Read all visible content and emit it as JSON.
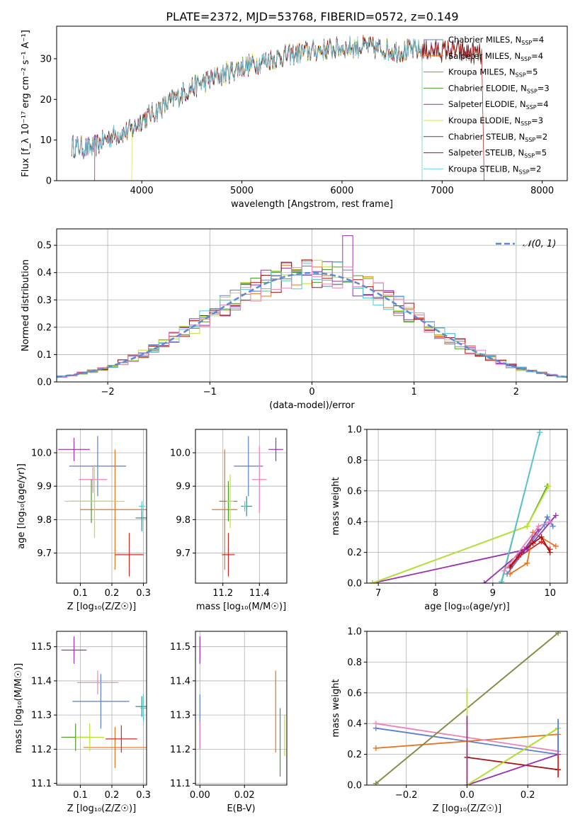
{
  "chart_data": [
    {
      "id": "spectrum",
      "type": "line",
      "title": "PLATE=2372, MJD=53768, FIBERID=0572, z=0.149",
      "xlabel": "wavelength [Angstrom, rest frame]",
      "ylabel": "Flux [f_λ 10⁻¹⁷ erg cm⁻² s⁻¹ A⁻¹]",
      "xlim": [
        3150,
        8250
      ],
      "ylim": [
        0,
        38
      ],
      "xticks": [
        "4000",
        "5000",
        "6000",
        "7000",
        "8000"
      ],
      "yticks": [
        "0",
        "10",
        "20",
        "30"
      ],
      "grid": false,
      "legend_position": "top-right",
      "legend": [
        {
          "name": "Chabrier MILES",
          "nssp": "4"
        },
        {
          "name": "Salpeter MILES",
          "nssp": "4"
        },
        {
          "name": "Kroupa MILES",
          "nssp": "5"
        },
        {
          "name": "Chabrier ELODIE",
          "nssp": "3"
        },
        {
          "name": "Salpeter ELODIE",
          "nssp": "4"
        },
        {
          "name": "Kroupa ELODIE",
          "nssp": "3"
        },
        {
          "name": "Chabrier STELIB",
          "nssp": "2"
        },
        {
          "name": "Salpeter STELIB",
          "nssp": "5"
        },
        {
          "name": "Kroupa STELIB",
          "nssp": "2"
        }
      ],
      "continuum_x": [
        3300,
        3500,
        3700,
        3900,
        4000,
        4200,
        4500,
        4800,
        5000,
        5300,
        5600,
        5900,
        6200,
        6500,
        6800,
        7100,
        7400
      ],
      "continuum_y": [
        8.5,
        8,
        11,
        12.5,
        15,
        18,
        23,
        26,
        28,
        30,
        31.5,
        32.5,
        33,
        32,
        32,
        32,
        31
      ],
      "model_ranges": [
        [
          3300,
          7400
        ],
        [
          3300,
          7400
        ],
        [
          3300,
          7400
        ],
        [
          3300,
          7400
        ],
        [
          3300,
          7400
        ],
        [
          3900,
          6800
        ],
        [
          3300,
          7400
        ],
        [
          3530,
          7420
        ],
        [
          3300,
          6800
        ]
      ]
    },
    {
      "id": "residuals",
      "type": "area",
      "xlabel": "(data-model)/error",
      "ylabel": "Normed distribution",
      "xlim": [
        -2.5,
        2.5
      ],
      "ylim": [
        0,
        0.56
      ],
      "xticks": [
        "−2",
        "−1",
        "0",
        "1",
        "2"
      ],
      "yticks": [
        "0.0",
        "0.1",
        "0.2",
        "0.3",
        "0.4",
        "0.5"
      ],
      "grid": true,
      "legend_position": "top-right",
      "legend": [
        {
          "name": "𝒩(0, 1)"
        }
      ],
      "bin_width": 0.1,
      "peak_values": [
        0.535,
        0.51,
        0.49,
        0.475,
        0.46
      ]
    },
    {
      "id": "age-vs-Z",
      "type": "scatter",
      "xlabel": "Z [log₁₀(Z/Z☉)]",
      "ylabel": "age  [log₁₀(age/yr)]",
      "xlim": [
        0.025,
        0.31
      ],
      "ylim": [
        9.61,
        10.07
      ],
      "xticks": [
        "0.1",
        "0.2",
        "0.3"
      ],
      "yticks": [
        "9.7",
        "9.8",
        "9.9",
        "10.0"
      ],
      "grid": true,
      "points": [
        {
          "x": 0.08,
          "y": 10.01,
          "xerr": 0.05,
          "yerr": 0.035
        },
        {
          "x": 0.155,
          "y": 9.96,
          "xerr": 0.09,
          "yerr": 0.09
        },
        {
          "x": 0.14,
          "y": 9.92,
          "xerr": 0.045,
          "yerr": 0.04
        },
        {
          "x": 0.21,
          "y": 9.83,
          "xerr": 0.11,
          "yerr": 0.18
        },
        {
          "x": 0.135,
          "y": 9.855,
          "xerr": 0.065,
          "yerr": 0.065
        },
        {
          "x": 0.145,
          "y": 9.855,
          "xerr": 0.095,
          "yerr": 0.11
        },
        {
          "x": 0.295,
          "y": 9.805,
          "xerr": 0.02,
          "yerr": 0.04
        },
        {
          "x": 0.255,
          "y": 9.695,
          "xerr": 0.045,
          "yerr": 0.065
        },
        {
          "x": 0.295,
          "y": 9.84,
          "xerr": 0.01,
          "yerr": 0.015
        }
      ]
    },
    {
      "id": "age-vs-mass",
      "type": "scatter",
      "xlabel": "mass [log₁₀(M/M☉)]",
      "ylabel": "",
      "xlim": [
        11.05,
        11.55
      ],
      "ylim": [
        9.61,
        10.07
      ],
      "xticks": [
        "11.2",
        "11.4"
      ],
      "yticks": [
        "9.7",
        "9.8",
        "9.9",
        "10.0"
      ],
      "grid": true,
      "points": [
        {
          "x": 11.49,
          "y": 10.01,
          "xerr": 0.04,
          "yerr": 0.035
        },
        {
          "x": 11.34,
          "y": 9.96,
          "xerr": 0.08,
          "yerr": 0.09
        },
        {
          "x": 11.4,
          "y": 9.92,
          "xerr": 0.04,
          "yerr": 0.1
        },
        {
          "x": 11.21,
          "y": 9.83,
          "xerr": 0.07,
          "yerr": 0.18
        },
        {
          "x": 11.23,
          "y": 9.855,
          "xerr": 0.05,
          "yerr": 0.06
        },
        {
          "x": 11.24,
          "y": 9.855,
          "xerr": 0.02,
          "yerr": 0.08
        },
        {
          "x": 11.33,
          "y": 9.84,
          "xerr": 0.03,
          "yerr": 0.03
        },
        {
          "x": 11.23,
          "y": 9.695,
          "xerr": 0.035,
          "yerr": 0.065
        },
        {
          "x": 11.32,
          "y": 9.84,
          "xerr": 0.01,
          "yerr": 0.015
        }
      ]
    },
    {
      "id": "weight-vs-age",
      "type": "line",
      "xlabel": "age  [log₁₀(age/yr)]",
      "ylabel": "mass weight",
      "xlim": [
        6.8,
        10.3
      ],
      "ylim": [
        0,
        1
      ],
      "xticks": [
        "7",
        "8",
        "9",
        "10"
      ],
      "yticks": [
        "0.0",
        "0.2",
        "0.4",
        "0.6",
        "0.8",
        "1.0"
      ],
      "grid": true,
      "series": [
        {
          "color": "#5a7fd6",
          "x": [
            9.25,
            9.9,
            9.95,
            10.05
          ],
          "y": [
            0.06,
            0.38,
            0.43,
            0.37
          ]
        },
        {
          "color": "#d62728",
          "x": [
            9.3,
            9.45,
            9.85,
            10.0
          ],
          "y": [
            0.1,
            0.17,
            0.27,
            0.22
          ]
        },
        {
          "color": "#e8741a",
          "x": [
            9.3,
            9.6,
            9.7,
            10.1
          ],
          "y": [
            0.06,
            0.13,
            0.33,
            0.24
          ]
        },
        {
          "color": "#4c9a2a",
          "x": [
            6.9,
            9.6,
            9.95
          ],
          "y": [
            0.0,
            0.37,
            0.63
          ]
        },
        {
          "color": "#9a2fb0",
          "x": [
            6.9,
            9.6,
            10.1
          ],
          "y": [
            0.0,
            0.22,
            0.44
          ]
        },
        {
          "color": "#b8e32e",
          "x": [
            6.9,
            9.6,
            9.97
          ],
          "y": [
            0.0,
            0.37,
            0.63
          ]
        },
        {
          "color": "#8a8a3a",
          "x": [
            9.15,
            9.82
          ],
          "y": [
            0.0,
            0.98
          ]
        },
        {
          "color": "#a80f0f",
          "x": [
            9.3,
            9.5,
            9.7,
            9.85,
            10.0
          ],
          "y": [
            0.11,
            0.2,
            0.26,
            0.3,
            0.2
          ]
        },
        {
          "color": "#55c8d6",
          "x": [
            9.15,
            9.82
          ],
          "y": [
            0.01,
            0.98
          ]
        },
        {
          "color": "#9a2fb0",
          "x": [
            8.85,
            9.55,
            9.8
          ],
          "y": [
            0.0,
            0.22,
            0.35
          ]
        },
        {
          "color": "#ee82b8",
          "x": [
            9.2,
            9.8,
            10.0
          ],
          "y": [
            0.08,
            0.37,
            0.4
          ]
        }
      ]
    },
    {
      "id": "mass-vs-Z",
      "type": "scatter",
      "xlabel": "Z [log₁₀(Z/Z☉)]",
      "ylabel": "mass [log₁₀(M/M☉)]",
      "xlim": [
        0.025,
        0.31
      ],
      "ylim": [
        11.095,
        11.545
      ],
      "xticks": [
        "0.1",
        "0.2",
        "0.3"
      ],
      "yticks": [
        "11.1",
        "11.2",
        "11.3",
        "11.4",
        "11.5"
      ],
      "grid": true,
      "points": [
        {
          "x": 0.08,
          "y": 11.49,
          "xerr": 0.04,
          "yerr": 0.04
        },
        {
          "x": 0.165,
          "y": 11.34,
          "xerr": 0.09,
          "yerr": 0.08
        },
        {
          "x": 0.155,
          "y": 11.395,
          "xerr": 0.065,
          "yerr": 0.035
        },
        {
          "x": 0.21,
          "y": 11.205,
          "xerr": 0.1,
          "yerr": 0.06
        },
        {
          "x": 0.085,
          "y": 11.235,
          "xerr": 0.045,
          "yerr": 0.04
        },
        {
          "x": 0.13,
          "y": 11.235,
          "xerr": 0.045,
          "yerr": 0.04
        },
        {
          "x": 0.295,
          "y": 11.325,
          "xerr": 0.02,
          "yerr": 0.03
        },
        {
          "x": 0.23,
          "y": 11.23,
          "xerr": 0.05,
          "yerr": 0.04
        },
        {
          "x": 0.3,
          "y": 11.32,
          "xerr": 0.01,
          "yerr": 0.04
        }
      ]
    },
    {
      "id": "mass-vs-EBV",
      "type": "scatter",
      "xlabel": "E(B-V)",
      "ylabel": "",
      "xlim": [
        -0.002,
        0.039
      ],
      "ylim": [
        11.095,
        11.545
      ],
      "xticks": [
        "0.00",
        "0.02"
      ],
      "yticks": [
        "11.1",
        "11.2",
        "11.3",
        "11.4",
        "11.5"
      ],
      "grid": true,
      "points": [
        {
          "x": 0.0,
          "y": 11.49,
          "xerr": 0,
          "yerr": 0.04
        },
        {
          "x": 0.0,
          "y": 11.28,
          "xerr": 0,
          "yerr": 0.08
        },
        {
          "x": 0.0,
          "y": 11.24,
          "xerr": 0,
          "yerr": 0.04
        },
        {
          "x": 0.034,
          "y": 11.31,
          "xerr": 0,
          "yerr": 0.12
        },
        {
          "x": 0.036,
          "y": 11.22,
          "xerr": 0,
          "yerr": 0.1
        },
        {
          "x": 0.038,
          "y": 11.24,
          "xerr": 0,
          "yerr": 0.06
        }
      ]
    },
    {
      "id": "weight-vs-Z",
      "type": "line",
      "xlabel": "Z [log₁₀(Z/Z☉)]",
      "ylabel": "mass weight",
      "xlim": [
        -0.33,
        0.33
      ],
      "ylim": [
        0,
        1
      ],
      "xticks": [
        "−0.2",
        "0.0",
        "0.2"
      ],
      "yticks": [
        "0.0",
        "0.2",
        "0.4",
        "0.6",
        "0.8",
        "1.0"
      ],
      "grid": true,
      "series": [
        {
          "color": "#5a7fd6",
          "x": [
            -0.3,
            0.3
          ],
          "y": [
            0.37,
            0.2
          ]
        },
        {
          "color": "#e8741a",
          "x": [
            -0.3,
            0.3
          ],
          "y": [
            0.24,
            0.33
          ]
        },
        {
          "color": "#ee82b8",
          "x": [
            -0.3,
            0.3
          ],
          "y": [
            0.4,
            0.22
          ]
        },
        {
          "color": "#a80f0f",
          "x": [
            0.0,
            0.3
          ],
          "y": [
            0.18,
            0.1
          ]
        },
        {
          "color": "#9a2fb0",
          "x": [
            0.0,
            0.3
          ],
          "y": [
            0.0,
            0.2
          ]
        },
        {
          "color": "#4c9a2a",
          "x": [
            0.0,
            0.3
          ],
          "y": [
            0.0,
            0.37
          ]
        },
        {
          "color": "#b8e32e",
          "x": [
            0.0,
            0.3
          ],
          "y": [
            0.0,
            0.37
          ]
        },
        {
          "color": "#55c8d6",
          "x": [
            -0.3,
            0.3
          ],
          "y": [
            0.01,
            0.99
          ]
        },
        {
          "color": "#8a8a3a",
          "x": [
            -0.3,
            0.3
          ],
          "y": [
            0.01,
            0.99
          ]
        }
      ],
      "verticals": [
        {
          "color": "#b8e32e",
          "x": 0.0,
          "y": [
            0.0,
            0.63
          ]
        },
        {
          "color": "#9a2fb0",
          "x": 0.0,
          "y": [
            0.0,
            0.45
          ]
        },
        {
          "color": "#d62728",
          "x": 0.3,
          "y": [
            0.05,
            0.33
          ]
        },
        {
          "color": "#5a7fd6",
          "x": 0.3,
          "y": [
            0.2,
            0.43
          ]
        }
      ]
    }
  ]
}
